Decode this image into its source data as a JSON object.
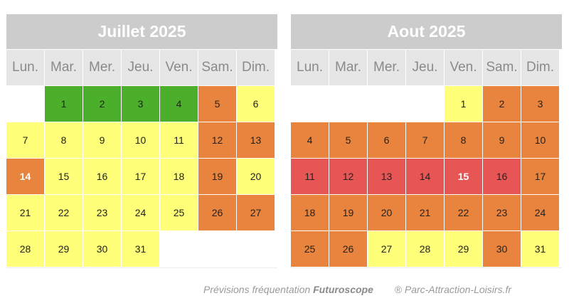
{
  "colors": {
    "title_bg": "#cccccc",
    "header_bg": "#e6e6e6",
    "levels": {
      "green": "#4caf2c",
      "yellow": "#ffff79",
      "orange": "#e8843d",
      "red": "#e85555",
      "empty": "#ffffff"
    }
  },
  "calendars": [
    {
      "title": "Juillet 2025",
      "weekdays": [
        "Lun.",
        "Mar.",
        "Mer.",
        "Jeu.",
        "Ven.",
        "Sam.",
        "Dim."
      ],
      "days": [
        {
          "label": "",
          "level": "empty"
        },
        {
          "label": "1",
          "level": "green"
        },
        {
          "label": "2",
          "level": "green"
        },
        {
          "label": "3",
          "level": "green"
        },
        {
          "label": "4",
          "level": "green"
        },
        {
          "label": "5",
          "level": "orange"
        },
        {
          "label": "6",
          "level": "yellow"
        },
        {
          "label": "7",
          "level": "yellow"
        },
        {
          "label": "8",
          "level": "yellow"
        },
        {
          "label": "9",
          "level": "yellow"
        },
        {
          "label": "10",
          "level": "yellow"
        },
        {
          "label": "11",
          "level": "yellow"
        },
        {
          "label": "12",
          "level": "orange"
        },
        {
          "label": "13",
          "level": "orange"
        },
        {
          "label": "14",
          "level": "orange",
          "highlight": true
        },
        {
          "label": "15",
          "level": "yellow"
        },
        {
          "label": "16",
          "level": "yellow"
        },
        {
          "label": "17",
          "level": "yellow"
        },
        {
          "label": "18",
          "level": "yellow"
        },
        {
          "label": "19",
          "level": "orange"
        },
        {
          "label": "20",
          "level": "yellow"
        },
        {
          "label": "21",
          "level": "yellow"
        },
        {
          "label": "22",
          "level": "yellow"
        },
        {
          "label": "23",
          "level": "yellow"
        },
        {
          "label": "24",
          "level": "yellow"
        },
        {
          "label": "25",
          "level": "yellow"
        },
        {
          "label": "26",
          "level": "orange"
        },
        {
          "label": "27",
          "level": "orange"
        },
        {
          "label": "28",
          "level": "yellow"
        },
        {
          "label": "29",
          "level": "yellow"
        },
        {
          "label": "30",
          "level": "yellow"
        },
        {
          "label": "31",
          "level": "yellow"
        },
        {
          "label": "",
          "level": "empty"
        },
        {
          "label": "",
          "level": "empty"
        },
        {
          "label": "",
          "level": "empty"
        }
      ]
    },
    {
      "title": "Aout 2025",
      "weekdays": [
        "Lun.",
        "Mar.",
        "Mer.",
        "Jeu.",
        "Ven.",
        "Sam.",
        "Dim."
      ],
      "days": [
        {
          "label": "",
          "level": "empty"
        },
        {
          "label": "",
          "level": "empty"
        },
        {
          "label": "",
          "level": "empty"
        },
        {
          "label": "",
          "level": "empty"
        },
        {
          "label": "1",
          "level": "yellow"
        },
        {
          "label": "2",
          "level": "orange"
        },
        {
          "label": "3",
          "level": "orange"
        },
        {
          "label": "4",
          "level": "orange"
        },
        {
          "label": "5",
          "level": "orange"
        },
        {
          "label": "6",
          "level": "orange"
        },
        {
          "label": "7",
          "level": "orange"
        },
        {
          "label": "8",
          "level": "orange"
        },
        {
          "label": "9",
          "level": "orange"
        },
        {
          "label": "10",
          "level": "orange"
        },
        {
          "label": "11",
          "level": "red"
        },
        {
          "label": "12",
          "level": "red"
        },
        {
          "label": "13",
          "level": "red"
        },
        {
          "label": "14",
          "level": "red"
        },
        {
          "label": "15",
          "level": "red",
          "highlight": true
        },
        {
          "label": "16",
          "level": "red"
        },
        {
          "label": "17",
          "level": "orange"
        },
        {
          "label": "18",
          "level": "orange"
        },
        {
          "label": "19",
          "level": "orange"
        },
        {
          "label": "20",
          "level": "orange"
        },
        {
          "label": "21",
          "level": "orange"
        },
        {
          "label": "22",
          "level": "orange"
        },
        {
          "label": "23",
          "level": "orange"
        },
        {
          "label": "24",
          "level": "orange"
        },
        {
          "label": "25",
          "level": "orange"
        },
        {
          "label": "26",
          "level": "orange"
        },
        {
          "label": "27",
          "level": "yellow"
        },
        {
          "label": "28",
          "level": "yellow"
        },
        {
          "label": "29",
          "level": "yellow"
        },
        {
          "label": "30",
          "level": "orange"
        },
        {
          "label": "31",
          "level": "yellow"
        }
      ]
    }
  ],
  "footer": {
    "prefix": "Prévisions fréquentation",
    "brand": "Futuroscope",
    "credit": "® Parc-Attraction-Loisirs.fr"
  }
}
